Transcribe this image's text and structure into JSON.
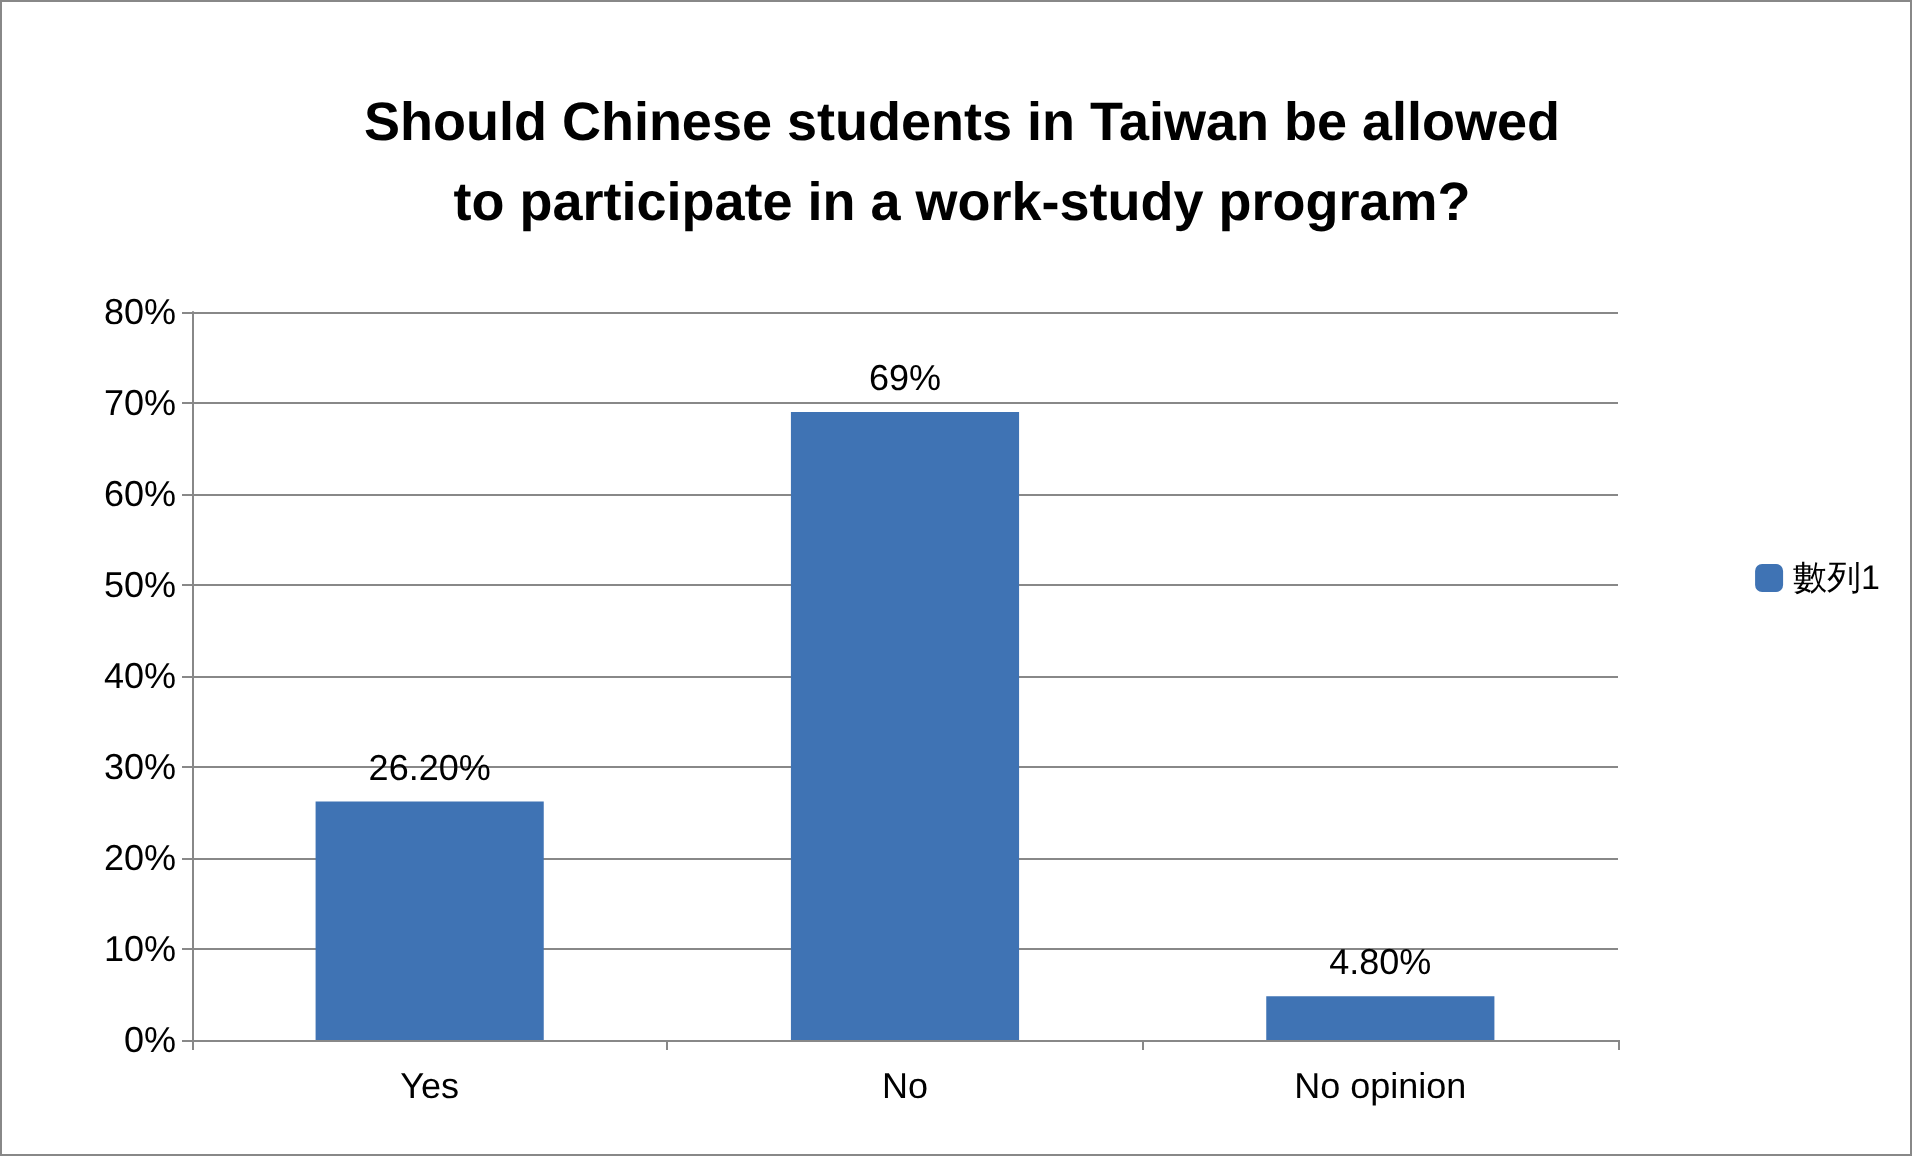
{
  "chart_data": {
    "type": "bar",
    "title": "Should Chinese students in Taiwan be allowed\nto participate in a work-study program?",
    "categories": [
      "Yes",
      "No",
      "No opinion"
    ],
    "series": [
      {
        "name": "數列1",
        "color": "#3f73b4",
        "values": [
          26.2,
          69,
          4.8
        ],
        "value_labels": [
          "26.20%",
          "69%",
          "4.80%"
        ]
      }
    ],
    "ylim": [
      0,
      80
    ],
    "yticks": [
      {
        "value": 0,
        "label": "0%"
      },
      {
        "value": 10,
        "label": "10%"
      },
      {
        "value": 20,
        "label": "20%"
      },
      {
        "value": 30,
        "label": "30%"
      },
      {
        "value": 40,
        "label": "40%"
      },
      {
        "value": 50,
        "label": "50%"
      },
      {
        "value": 60,
        "label": "60%"
      },
      {
        "value": 70,
        "label": "70%"
      },
      {
        "value": 80,
        "label": "80%"
      }
    ],
    "grid": "y",
    "legend": "right"
  }
}
